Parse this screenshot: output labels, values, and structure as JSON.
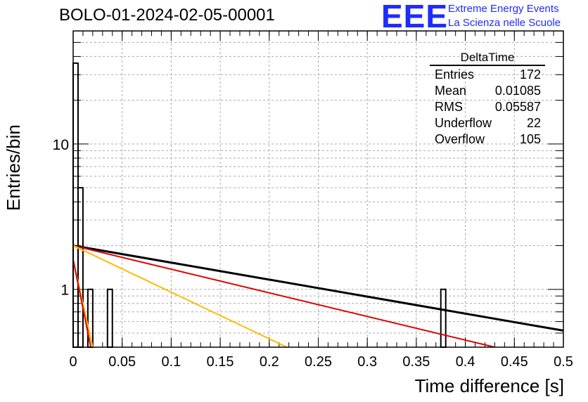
{
  "header": {
    "title": "BOLO-01-2024-02-05-00001",
    "logo_text": "EEE",
    "logo_line1": "Extreme Energy Events",
    "logo_line2": "La Scienza nelle Scuole"
  },
  "stats": {
    "title": "DeltaTime",
    "rows": [
      {
        "label": "Entries",
        "value": "172"
      },
      {
        "label": "Mean",
        "value": "0.01085"
      },
      {
        "label": "RMS",
        "value": "0.05587"
      },
      {
        "label": "Underflow",
        "value": "22"
      },
      {
        "label": "Overflow",
        "value": "105"
      }
    ]
  },
  "chart_data": {
    "type": "bar",
    "title": "BOLO-01-2024-02-05-00001",
    "xlabel": "Time difference [s]",
    "ylabel": "Entries/bin",
    "xlim": [
      0,
      0.5
    ],
    "ylim": [
      0.4,
      60
    ],
    "yscale": "log",
    "grid": true,
    "x_ticks": [
      "0",
      "0.05",
      "0.1",
      "0.15",
      "0.2",
      "0.25",
      "0.3",
      "0.35",
      "0.4",
      "0.45",
      "0.5"
    ],
    "y_ticks": [
      "1",
      "10"
    ],
    "histogram": {
      "bin_width": 0.005,
      "bins": [
        {
          "x": 0.0,
          "count": 36
        },
        {
          "x": 0.005,
          "count": 5
        },
        {
          "x": 0.015,
          "count": 1
        },
        {
          "x": 0.035,
          "count": 1
        },
        {
          "x": 0.375,
          "count": 1
        }
      ]
    },
    "series": [
      {
        "color": "#000000",
        "points": [
          [
            0.0,
            2.0
          ],
          [
            0.5,
            0.52
          ]
        ]
      },
      {
        "color": "#dd0000",
        "points": [
          [
            0.0,
            2.0
          ],
          [
            0.43,
            0.4
          ]
        ]
      },
      {
        "color": "#ffbb00",
        "points": [
          [
            0.0,
            2.0
          ],
          [
            0.218,
            0.4
          ]
        ]
      },
      {
        "color": "#ffbb00",
        "points": [
          [
            0.0,
            1.6
          ],
          [
            0.02,
            0.4
          ]
        ]
      },
      {
        "color": "#dd0000",
        "points": [
          [
            0.0,
            1.6
          ],
          [
            0.018,
            0.4
          ]
        ]
      }
    ]
  }
}
